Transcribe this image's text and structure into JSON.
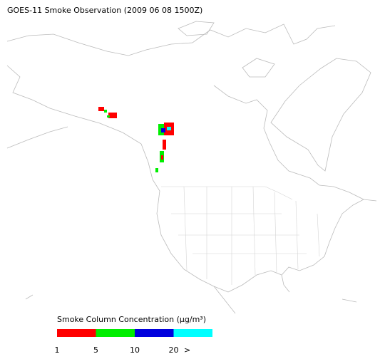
{
  "header": {
    "title": "GOES-11 Smoke Observation (2009 06 08  1500Z)"
  },
  "legend": {
    "title": "Smoke Column Concentration (μg/m³)",
    "colors": [
      "#ff0000",
      "#00ee00",
      "#0000dd",
      "#00ffff"
    ],
    "labels": [
      "1",
      "5",
      "10",
      "20",
      ">"
    ]
  }
}
